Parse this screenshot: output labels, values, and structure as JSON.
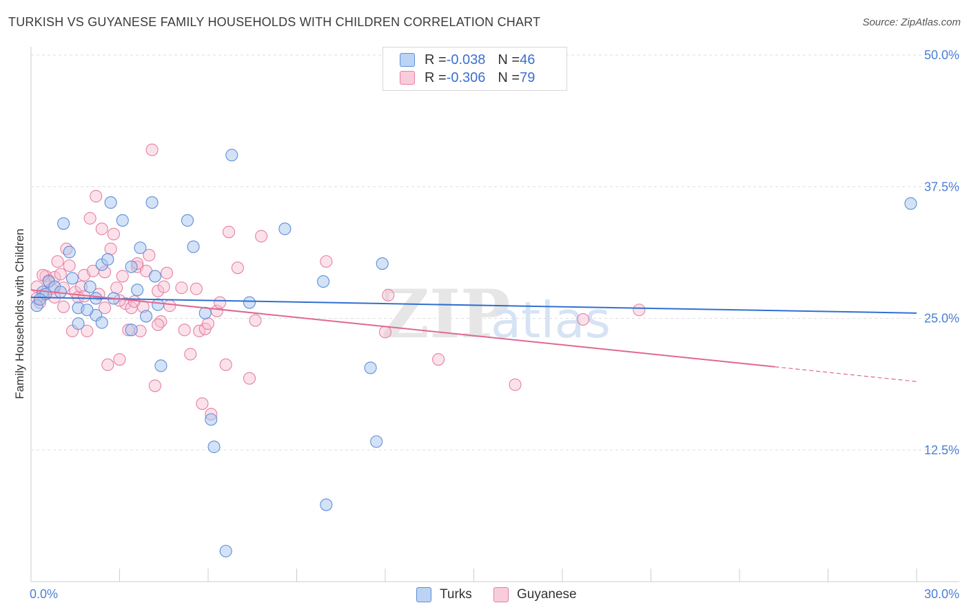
{
  "title": "TURKISH VS GUYANESE FAMILY HOUSEHOLDS WITH CHILDREN CORRELATION CHART",
  "source": "Source: ZipAtlas.com",
  "watermark": {
    "zip": "ZIP",
    "atlas": "atlas"
  },
  "legend": {
    "turks": {
      "r_label": "R = ",
      "r_value": "-0.038",
      "n_label": "N = ",
      "n_value": "46"
    },
    "guyanese": {
      "r_label": "R = ",
      "r_value": "-0.306",
      "n_label": "N = ",
      "n_value": "79"
    }
  },
  "bottom_legend": {
    "turks": "Turks",
    "guyanese": "Guyanese"
  },
  "colors": {
    "turks_fill": "#a9c6ef",
    "turks_stroke": "#5b8ed8",
    "turks_line": "#2f6fd0",
    "guyanese_fill": "#f6bfd0",
    "guyanese_stroke": "#e57fa2",
    "guyanese_line": "#e0678f",
    "grid": "#dddddd",
    "tick_label": "#4a7fd6"
  },
  "chart_data": {
    "type": "scatter",
    "title": "TURKISH VS GUYANESE FAMILY HOUSEHOLDS WITH CHILDREN CORRELATION CHART",
    "xlabel": "",
    "ylabel": "Family Households with Children",
    "xlim": [
      0,
      30
    ],
    "ylim": [
      0,
      50
    ],
    "x_tick_labels": [
      "0.0%",
      "30.0%"
    ],
    "y_ticks": [
      12.5,
      25.0,
      37.5,
      50.0
    ],
    "y_tick_labels": [
      "12.5%",
      "25.0%",
      "37.5%",
      "50.0%"
    ],
    "series": [
      {
        "name": "Turks",
        "r": -0.038,
        "n": 46,
        "trend": {
          "x0": 0,
          "y0": 27.0,
          "x1": 30,
          "y1": 25.5
        },
        "points": [
          [
            0.2,
            26.2
          ],
          [
            0.4,
            27.5
          ],
          [
            0.6,
            28.5
          ],
          [
            0.8,
            28.0
          ],
          [
            1.0,
            27.5
          ],
          [
            1.1,
            34.0
          ],
          [
            1.3,
            31.3
          ],
          [
            1.4,
            28.8
          ],
          [
            1.6,
            24.5
          ],
          [
            1.6,
            26.0
          ],
          [
            2.0,
            28.0
          ],
          [
            2.2,
            25.3
          ],
          [
            2.4,
            30.1
          ],
          [
            2.6,
            30.6
          ],
          [
            2.7,
            36.0
          ],
          [
            3.1,
            34.3
          ],
          [
            3.4,
            29.9
          ],
          [
            3.6,
            27.7
          ],
          [
            3.7,
            31.7
          ],
          [
            3.9,
            25.2
          ],
          [
            4.1,
            36.0
          ],
          [
            4.2,
            29.0
          ],
          [
            4.4,
            20.5
          ],
          [
            5.3,
            34.3
          ],
          [
            5.5,
            31.8
          ],
          [
            5.9,
            25.5
          ],
          [
            6.8,
            40.5
          ],
          [
            6.6,
            2.9
          ],
          [
            7.4,
            26.5
          ],
          [
            8.6,
            33.5
          ],
          [
            9.9,
            28.5
          ],
          [
            10.0,
            7.3
          ],
          [
            11.5,
            20.3
          ],
          [
            11.9,
            30.2
          ],
          [
            11.7,
            13.3
          ],
          [
            2.4,
            24.6
          ],
          [
            29.8,
            35.9
          ],
          [
            4.3,
            26.3
          ],
          [
            1.9,
            25.8
          ],
          [
            0.5,
            27.3
          ],
          [
            6.2,
            12.8
          ],
          [
            6.1,
            15.4
          ],
          [
            0.3,
            26.8
          ],
          [
            3.4,
            23.9
          ],
          [
            2.8,
            26.9
          ],
          [
            2.2,
            26.9
          ]
        ]
      },
      {
        "name": "Guyanese",
        "r": -0.306,
        "n": 79,
        "trend": {
          "x0": 0,
          "y0": 27.7,
          "x1": 25.2,
          "y1": 20.4
        },
        "trend_dashed": {
          "x0": 25.2,
          "y0": 20.4,
          "x1": 30,
          "y1": 19.0
        },
        "points": [
          [
            0.2,
            28.0
          ],
          [
            0.3,
            26.5
          ],
          [
            0.4,
            27.2
          ],
          [
            0.5,
            29.0
          ],
          [
            0.6,
            28.6
          ],
          [
            0.7,
            27.8
          ],
          [
            0.8,
            28.9
          ],
          [
            0.9,
            30.4
          ],
          [
            1.0,
            29.2
          ],
          [
            1.1,
            26.1
          ],
          [
            1.2,
            31.6
          ],
          [
            1.3,
            30.0
          ],
          [
            1.4,
            23.8
          ],
          [
            1.5,
            27.5
          ],
          [
            1.6,
            27.0
          ],
          [
            1.7,
            28.0
          ],
          [
            1.8,
            29.1
          ],
          [
            1.9,
            23.8
          ],
          [
            2.0,
            34.5
          ],
          [
            2.1,
            29.5
          ],
          [
            2.2,
            36.6
          ],
          [
            2.3,
            27.3
          ],
          [
            2.4,
            33.5
          ],
          [
            2.5,
            29.4
          ],
          [
            2.6,
            20.6
          ],
          [
            2.7,
            31.6
          ],
          [
            2.8,
            33.0
          ],
          [
            2.9,
            27.9
          ],
          [
            3.0,
            21.1
          ],
          [
            3.1,
            29.0
          ],
          [
            3.2,
            26.4
          ],
          [
            3.3,
            23.9
          ],
          [
            3.4,
            26.0
          ],
          [
            3.5,
            26.6
          ],
          [
            3.6,
            29.9
          ],
          [
            3.7,
            23.8
          ],
          [
            3.8,
            26.1
          ],
          [
            3.9,
            29.5
          ],
          [
            4.0,
            31.0
          ],
          [
            4.1,
            41.0
          ],
          [
            4.2,
            18.6
          ],
          [
            4.3,
            27.6
          ],
          [
            4.4,
            24.7
          ],
          [
            4.5,
            28.0
          ],
          [
            4.6,
            29.3
          ],
          [
            4.7,
            26.2
          ],
          [
            5.1,
            27.9
          ],
          [
            5.2,
            23.9
          ],
          [
            5.4,
            21.6
          ],
          [
            5.6,
            27.8
          ],
          [
            5.7,
            23.8
          ],
          [
            5.8,
            16.9
          ],
          [
            5.9,
            24.0
          ],
          [
            6.0,
            24.5
          ],
          [
            6.1,
            15.9
          ],
          [
            6.3,
            25.7
          ],
          [
            6.4,
            26.5
          ],
          [
            6.6,
            20.6
          ],
          [
            6.7,
            33.2
          ],
          [
            7.0,
            29.8
          ],
          [
            7.4,
            19.3
          ],
          [
            7.6,
            24.8
          ],
          [
            7.8,
            32.8
          ],
          [
            10.0,
            30.4
          ],
          [
            12.1,
            27.2
          ],
          [
            12.0,
            23.7
          ],
          [
            13.8,
            21.1
          ],
          [
            16.4,
            18.7
          ],
          [
            18.7,
            24.9
          ],
          [
            20.6,
            25.8
          ],
          [
            3.6,
            30.2
          ],
          [
            1.1,
            27.9
          ],
          [
            0.8,
            27.0
          ],
          [
            2.5,
            26.0
          ],
          [
            0.4,
            29.1
          ],
          [
            3.0,
            26.7
          ],
          [
            1.8,
            27.1
          ],
          [
            4.3,
            24.4
          ],
          [
            0.2,
            26.9
          ]
        ]
      }
    ]
  }
}
